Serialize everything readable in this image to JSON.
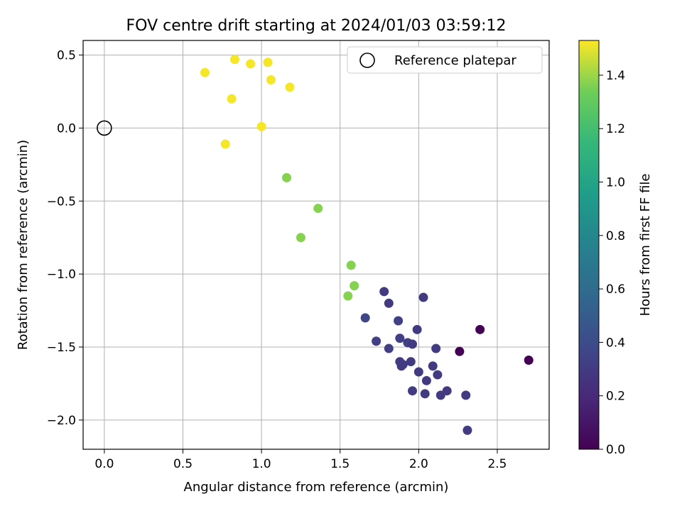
{
  "chart_data": {
    "type": "scatter",
    "title": "FOV centre drift starting at 2024/01/03 03:59:12",
    "xlabel": "Angular distance from reference (arcmin)",
    "ylabel": "Rotation from reference (arcmin)",
    "xlim": [
      -0.135,
      2.83
    ],
    "ylim": [
      -2.2,
      0.6
    ],
    "xticks": [
      0.0,
      0.5,
      1.0,
      1.5,
      2.0,
      2.5
    ],
    "xtick_labels": [
      "0.0",
      "0.5",
      "1.0",
      "1.5",
      "2.0",
      "2.5"
    ],
    "yticks": [
      -2.0,
      -1.5,
      -1.0,
      -0.5,
      0.0,
      0.5
    ],
    "ytick_labels": [
      "−2.0",
      "−1.5",
      "−1.0",
      "−0.5",
      "0.0",
      "0.5"
    ],
    "grid": true,
    "legend": {
      "placement": "upper right",
      "entries": [
        "Reference platepar"
      ]
    },
    "reference_point": {
      "x": 0.0,
      "y": 0.0,
      "marker": "open-circle",
      "label": "Reference platepar"
    },
    "colorbar": {
      "label": "Hours from first FF file",
      "colormap": "viridis",
      "range": [
        0.0,
        1.53
      ],
      "ticks": [
        0.0,
        0.2,
        0.4,
        0.6,
        0.8,
        1.0,
        1.2,
        1.4
      ],
      "tick_labels": [
        "0.0",
        "0.2",
        "0.4",
        "0.6",
        "0.8",
        "1.0",
        "1.2",
        "1.4"
      ]
    },
    "points": [
      {
        "x": 0.64,
        "y": 0.38,
        "c": 1.52
      },
      {
        "x": 0.83,
        "y": 0.47,
        "c": 1.52
      },
      {
        "x": 0.93,
        "y": 0.44,
        "c": 1.52
      },
      {
        "x": 1.04,
        "y": 0.45,
        "c": 1.52
      },
      {
        "x": 1.06,
        "y": 0.33,
        "c": 1.52
      },
      {
        "x": 1.18,
        "y": 0.28,
        "c": 1.52
      },
      {
        "x": 0.81,
        "y": 0.2,
        "c": 1.52
      },
      {
        "x": 1.0,
        "y": 0.01,
        "c": 1.52
      },
      {
        "x": 0.77,
        "y": -0.11,
        "c": 1.52
      },
      {
        "x": 1.16,
        "y": -0.34,
        "c": 1.37
      },
      {
        "x": 1.36,
        "y": -0.55,
        "c": 1.37
      },
      {
        "x": 1.25,
        "y": -0.75,
        "c": 1.37
      },
      {
        "x": 1.57,
        "y": -0.94,
        "c": 1.37
      },
      {
        "x": 1.59,
        "y": -1.08,
        "c": 1.37
      },
      {
        "x": 1.55,
        "y": -1.15,
        "c": 1.37
      },
      {
        "x": 1.78,
        "y": -1.12,
        "c": 0.3
      },
      {
        "x": 2.03,
        "y": -1.16,
        "c": 0.3
      },
      {
        "x": 1.81,
        "y": -1.2,
        "c": 0.3
      },
      {
        "x": 1.66,
        "y": -1.3,
        "c": 0.36
      },
      {
        "x": 1.87,
        "y": -1.32,
        "c": 0.33
      },
      {
        "x": 1.99,
        "y": -1.38,
        "c": 0.3
      },
      {
        "x": 1.73,
        "y": -1.46,
        "c": 0.33
      },
      {
        "x": 1.88,
        "y": -1.44,
        "c": 0.33
      },
      {
        "x": 1.93,
        "y": -1.47,
        "c": 0.33
      },
      {
        "x": 1.96,
        "y": -1.48,
        "c": 0.3
      },
      {
        "x": 1.81,
        "y": -1.51,
        "c": 0.33
      },
      {
        "x": 2.11,
        "y": -1.51,
        "c": 0.3
      },
      {
        "x": 1.95,
        "y": -1.6,
        "c": 0.3
      },
      {
        "x": 1.88,
        "y": -1.6,
        "c": 0.3
      },
      {
        "x": 1.9,
        "y": -1.62,
        "c": 0.3
      },
      {
        "x": 1.89,
        "y": -1.63,
        "c": 0.3
      },
      {
        "x": 2.09,
        "y": -1.63,
        "c": 0.3
      },
      {
        "x": 2.0,
        "y": -1.67,
        "c": 0.3
      },
      {
        "x": 2.12,
        "y": -1.69,
        "c": 0.3
      },
      {
        "x": 2.05,
        "y": -1.73,
        "c": 0.3
      },
      {
        "x": 1.96,
        "y": -1.8,
        "c": 0.3
      },
      {
        "x": 2.04,
        "y": -1.82,
        "c": 0.3
      },
      {
        "x": 2.14,
        "y": -1.83,
        "c": 0.3
      },
      {
        "x": 2.18,
        "y": -1.8,
        "c": 0.3
      },
      {
        "x": 2.3,
        "y": -1.83,
        "c": 0.3
      },
      {
        "x": 2.31,
        "y": -2.07,
        "c": 0.3
      },
      {
        "x": 2.26,
        "y": -1.53,
        "c": 0.0
      },
      {
        "x": 2.39,
        "y": -1.38,
        "c": 0.0
      },
      {
        "x": 2.7,
        "y": -1.59,
        "c": 0.0
      }
    ]
  }
}
